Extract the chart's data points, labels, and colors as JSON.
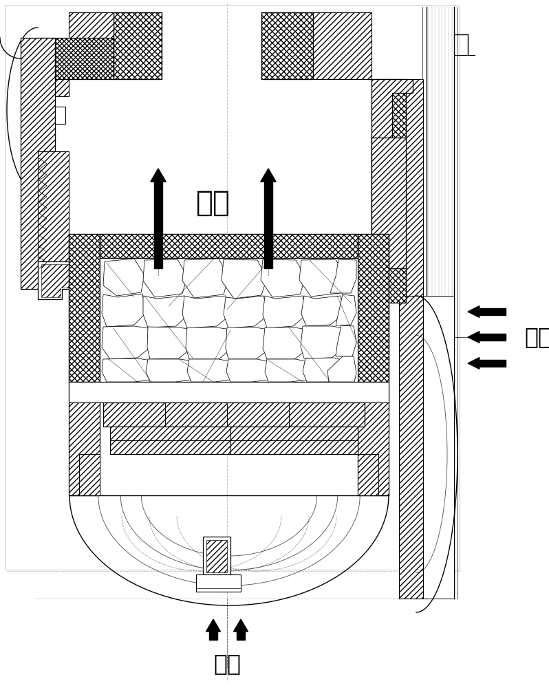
{
  "bg_color": "#ffffff",
  "lc": "#000000",
  "text_outlet": "出气",
  "text_inlet_right": "进气",
  "text_inlet_bottom": "进气",
  "fig_width": 7.98,
  "fig_height": 10.0,
  "dpi": 100
}
